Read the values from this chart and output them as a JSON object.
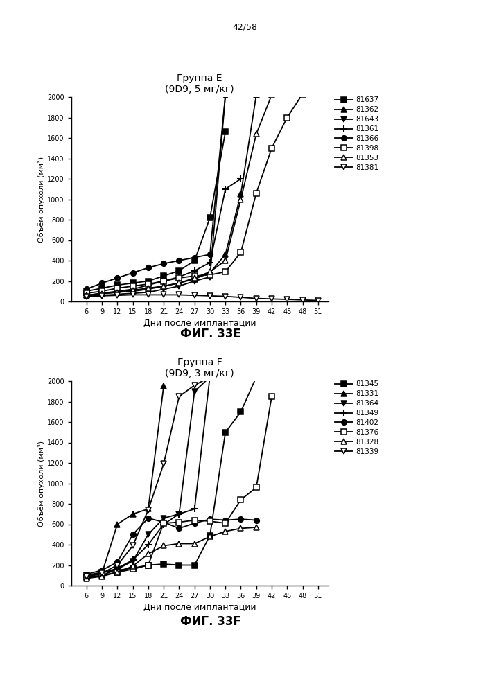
{
  "page_label": "42/58",
  "fig_E": {
    "title": "Группа E",
    "subtitle": "(9D9, 5 мг/кг)",
    "xlabel": "Дни после имплантации",
    "ylabel": "Объём опухоли (мм³)",
    "fig_label": "ФИГ. 33E",
    "xticks": [
      6,
      9,
      12,
      15,
      18,
      21,
      24,
      27,
      30,
      33,
      36,
      39,
      42,
      45,
      48,
      51
    ],
    "ylim": [
      0,
      2000
    ],
    "yticks": [
      0,
      200,
      400,
      600,
      800,
      1000,
      1200,
      1400,
      1600,
      1800,
      2000
    ],
    "series": [
      {
        "label": "81637",
        "marker": "s",
        "fillstyle": "full",
        "x": [
          6,
          9,
          12,
          15,
          18,
          21,
          24,
          27,
          30,
          33
        ],
        "y": [
          100,
          130,
          160,
          180,
          200,
          250,
          300,
          400,
          820,
          1660
        ]
      },
      {
        "label": "81362",
        "marker": "^",
        "fillstyle": "full",
        "x": [
          6,
          9,
          12,
          15,
          18,
          21,
          24,
          27,
          30,
          33,
          36,
          39
        ],
        "y": [
          60,
          80,
          90,
          100,
          120,
          150,
          180,
          220,
          280,
          460,
          1050,
          2020
        ]
      },
      {
        "label": "81643",
        "marker": "v",
        "fillstyle": "full",
        "x": [
          6,
          9,
          12,
          15,
          18,
          21,
          24,
          27,
          30,
          33
        ],
        "y": [
          50,
          60,
          70,
          80,
          90,
          120,
          150,
          200,
          240,
          2020
        ]
      },
      {
        "label": "81361",
        "marker": "+",
        "fillstyle": "full",
        "x": [
          6,
          9,
          12,
          15,
          18,
          21,
          24,
          27,
          30,
          33,
          36
        ],
        "y": [
          60,
          80,
          100,
          120,
          160,
          200,
          240,
          300,
          380,
          1100,
          1200
        ]
      },
      {
        "label": "81366",
        "marker": "o",
        "fillstyle": "full",
        "x": [
          6,
          9,
          12,
          15,
          18,
          21,
          24,
          27,
          30,
          33
        ],
        "y": [
          120,
          180,
          230,
          280,
          330,
          370,
          400,
          430,
          460,
          2020
        ]
      },
      {
        "label": "81398",
        "marker": "s",
        "fillstyle": "none",
        "x": [
          6,
          9,
          12,
          15,
          18,
          21,
          24,
          27,
          30,
          33,
          36,
          39,
          42,
          45,
          48
        ],
        "y": [
          80,
          100,
          130,
          150,
          170,
          200,
          230,
          250,
          260,
          290,
          480,
          1060,
          1500,
          1800,
          2030
        ]
      },
      {
        "label": "81353",
        "marker": "^",
        "fillstyle": "none",
        "x": [
          6,
          9,
          12,
          15,
          18,
          21,
          24,
          27,
          30,
          33,
          36,
          39,
          42
        ],
        "y": [
          60,
          75,
          90,
          110,
          130,
          150,
          180,
          230,
          290,
          400,
          1000,
          1640,
          2020
        ]
      },
      {
        "label": "81381",
        "marker": "v",
        "fillstyle": "none",
        "x": [
          6,
          9,
          12,
          15,
          18,
          21,
          24,
          27,
          30,
          33,
          36,
          39,
          42,
          45,
          48,
          51
        ],
        "y": [
          50,
          55,
          60,
          65,
          65,
          65,
          65,
          60,
          55,
          50,
          40,
          30,
          25,
          20,
          15,
          10
        ]
      }
    ]
  },
  "fig_F": {
    "title": "Группа F",
    "subtitle": "(9D9, 3 мг/кг)",
    "xlabel": "Дни после имплантации",
    "ylabel": "Объём опухоли (мм³)",
    "fig_label": "ФИГ. 33F",
    "xticks": [
      6,
      9,
      12,
      15,
      18,
      21,
      24,
      27,
      30,
      33,
      36,
      39,
      42,
      45,
      48,
      51
    ],
    "ylim": [
      0,
      2000
    ],
    "yticks": [
      0,
      200,
      400,
      600,
      800,
      1000,
      1200,
      1400,
      1600,
      1800,
      2000
    ],
    "series": [
      {
        "label": "81345",
        "marker": "s",
        "fillstyle": "full",
        "x": [
          6,
          9,
          12,
          15,
          18,
          21,
          24,
          27,
          30,
          33,
          36,
          39
        ],
        "y": [
          100,
          130,
          150,
          170,
          200,
          210,
          200,
          200,
          490,
          1500,
          1700,
          2040
        ]
      },
      {
        "label": "81331",
        "marker": "^",
        "fillstyle": "full",
        "x": [
          6,
          9,
          12,
          15,
          18,
          21
        ],
        "y": [
          80,
          120,
          600,
          700,
          750,
          1950
        ]
      },
      {
        "label": "81364",
        "marker": "v",
        "fillstyle": "full",
        "x": [
          6,
          9,
          12,
          15,
          18,
          21,
          24,
          27,
          30
        ],
        "y": [
          70,
          100,
          160,
          240,
          500,
          660,
          700,
          1900,
          2040
        ]
      },
      {
        "label": "81349",
        "marker": "+",
        "fillstyle": "full",
        "x": [
          6,
          9,
          12,
          15,
          18,
          21,
          24,
          27,
          30
        ],
        "y": [
          90,
          120,
          170,
          250,
          400,
          600,
          700,
          750,
          2050
        ]
      },
      {
        "label": "81402",
        "marker": "o",
        "fillstyle": "full",
        "x": [
          6,
          9,
          12,
          15,
          18,
          21,
          24,
          27,
          30,
          33,
          36,
          39
        ],
        "y": [
          110,
          150,
          230,
          500,
          660,
          620,
          560,
          610,
          650,
          640,
          650,
          640
        ]
      },
      {
        "label": "81376",
        "marker": "s",
        "fillstyle": "none",
        "x": [
          6,
          9,
          12,
          15,
          18,
          21,
          24,
          27,
          30,
          33,
          36,
          39,
          42
        ],
        "y": [
          80,
          100,
          130,
          160,
          200,
          610,
          620,
          640,
          630,
          610,
          840,
          960,
          1850
        ]
      },
      {
        "label": "81328",
        "marker": "^",
        "fillstyle": "none",
        "x": [
          6,
          9,
          12,
          15,
          18,
          21,
          24,
          27,
          30,
          33,
          36,
          39
        ],
        "y": [
          70,
          90,
          130,
          190,
          310,
          390,
          410,
          410,
          480,
          530,
          560,
          570
        ]
      },
      {
        "label": "81339",
        "marker": "v",
        "fillstyle": "none",
        "x": [
          6,
          9,
          12,
          15,
          18,
          21,
          24,
          27,
          30
        ],
        "y": [
          90,
          120,
          200,
          390,
          740,
          1190,
          1850,
          1960,
          2040
        ]
      }
    ]
  }
}
